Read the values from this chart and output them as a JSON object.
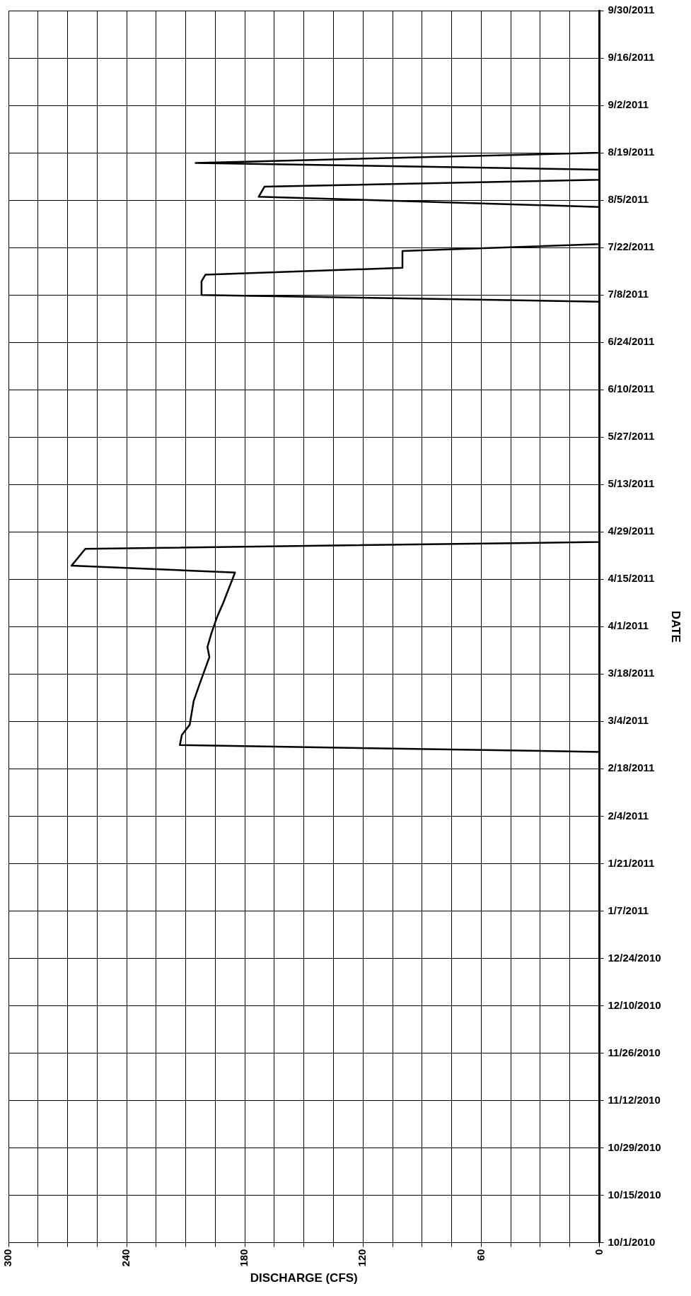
{
  "chart_data": {
    "type": "line",
    "xlabel": "DISCHARGE (CFS)",
    "ylabel": "DATE",
    "orientation": "horizontal",
    "color": "#000000",
    "marker": "none",
    "grid": true,
    "legend": false,
    "x": [
      "2010-10-01",
      "2011-02-23",
      "2011-02-25",
      "2011-02-28",
      "2011-03-03",
      "2011-03-10",
      "2011-03-15",
      "2011-03-23",
      "2011-03-26",
      "2011-03-30",
      "2011-04-04",
      "2011-04-08",
      "2011-04-17",
      "2011-04-19",
      "2011-04-24",
      "2011-04-26",
      "2011-07-06",
      "2011-07-08",
      "2011-07-12",
      "2011-07-14",
      "2011-07-16",
      "2011-07-21",
      "2011-07-23",
      "2011-08-03",
      "2011-08-06",
      "2011-08-09",
      "2011-08-11",
      "2011-08-14",
      "2011-08-16",
      "2011-08-19",
      "2011-09-30"
    ],
    "values": [
      0,
      0,
      213,
      212,
      208,
      206,
      203,
      198,
      199,
      197,
      194,
      191,
      185,
      268,
      261,
      0,
      0,
      202,
      202,
      200,
      100,
      100,
      0,
      0,
      173,
      170,
      0,
      0,
      205,
      0,
      0
    ],
    "ylim": [
      "2010-10-01",
      "2011-09-30"
    ],
    "yticks": [
      {
        "value": "2010-10-01",
        "label": "10/1/2010"
      },
      {
        "value": "2010-10-15",
        "label": "10/15/2010"
      },
      {
        "value": "2010-10-29",
        "label": "10/29/2010"
      },
      {
        "value": "2010-11-12",
        "label": "11/12/2010"
      },
      {
        "value": "2010-11-26",
        "label": "11/26/2010"
      },
      {
        "value": "2010-12-10",
        "label": "12/10/2010"
      },
      {
        "value": "2010-12-24",
        "label": "12/24/2010"
      },
      {
        "value": "2011-01-07",
        "label": "1/7/2011"
      },
      {
        "value": "2011-01-21",
        "label": "1/21/2011"
      },
      {
        "value": "2011-02-04",
        "label": "2/4/2011"
      },
      {
        "value": "2011-02-18",
        "label": "2/18/2011"
      },
      {
        "value": "2011-03-04",
        "label": "3/4/2011"
      },
      {
        "value": "2011-03-18",
        "label": "3/18/2011"
      },
      {
        "value": "2011-04-01",
        "label": "4/1/2011"
      },
      {
        "value": "2011-04-15",
        "label": "4/15/2011"
      },
      {
        "value": "2011-04-29",
        "label": "4/29/2011"
      },
      {
        "value": "2011-05-13",
        "label": "5/13/2011"
      },
      {
        "value": "2011-05-27",
        "label": "5/27/2011"
      },
      {
        "value": "2011-06-10",
        "label": "6/10/2011"
      },
      {
        "value": "2011-06-24",
        "label": "6/24/2011"
      },
      {
        "value": "2011-07-08",
        "label": "7/8/2011"
      },
      {
        "value": "2011-07-22",
        "label": "7/22/2011"
      },
      {
        "value": "2011-08-05",
        "label": "8/5/2011"
      },
      {
        "value": "2011-08-19",
        "label": "8/19/2011"
      },
      {
        "value": "2011-09-02",
        "label": "9/2/2011"
      },
      {
        "value": "2011-09-16",
        "label": "9/16/2011"
      },
      {
        "value": "2011-09-30",
        "label": "9/30/2011"
      }
    ],
    "xlim": [
      300,
      0
    ],
    "xticks": [
      300,
      {
        "value": 285,
        "label": null
      },
      {
        "value": 270,
        "label": null
      },
      {
        "value": 255,
        "label": null
      },
      240,
      {
        "value": 225,
        "label": null
      },
      {
        "value": 210,
        "label": null
      },
      {
        "value": 195,
        "label": null
      },
      180,
      {
        "value": 165,
        "label": null
      },
      {
        "value": 150,
        "label": null
      },
      {
        "value": 135,
        "label": null
      },
      120,
      {
        "value": 105,
        "label": null
      },
      {
        "value": 90,
        "label": null
      },
      {
        "value": 75,
        "label": null
      },
      60,
      {
        "value": 45,
        "label": null
      },
      {
        "value": 30,
        "label": null
      },
      {
        "value": 15,
        "label": null
      },
      0
    ]
  }
}
